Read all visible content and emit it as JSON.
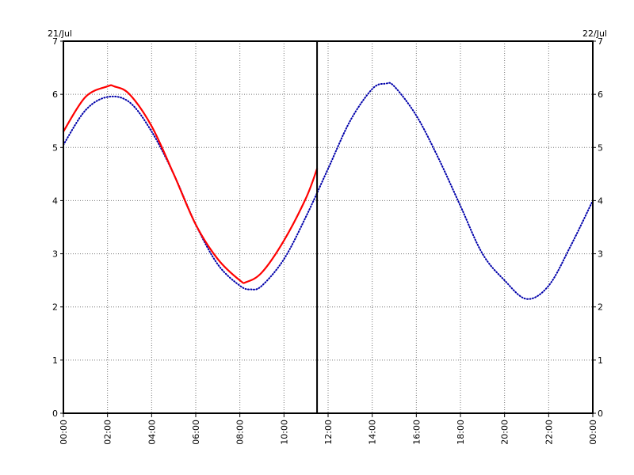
{
  "chart_data": {
    "type": "line",
    "title": "",
    "xlabel": "",
    "ylabel": "",
    "date_start_label": "21/Jul",
    "date_end_label": "22/Jul",
    "x_ticks": [
      "00:00",
      "02:00",
      "04:00",
      "06:00",
      "08:00",
      "10:00",
      "12:00",
      "14:00",
      "16:00",
      "18:00",
      "20:00",
      "22:00",
      "00:00"
    ],
    "xlim_hours": [
      0,
      24
    ],
    "ylim": [
      0,
      7
    ],
    "y_ticks": [
      0,
      1,
      2,
      3,
      4,
      5,
      6,
      7
    ],
    "grid": true,
    "current_time_marker_hours": 11.5,
    "series": [
      {
        "color": "#0000aa",
        "style": "dotted",
        "x_hours": [
          0,
          1,
          2,
          3,
          4,
          5,
          6,
          7,
          8,
          8.5,
          9,
          10,
          11,
          12,
          13,
          14,
          14.6,
          15,
          16,
          17,
          18,
          19,
          20,
          21,
          22,
          23,
          24
        ],
        "y": [
          5.05,
          5.7,
          5.95,
          5.85,
          5.3,
          4.5,
          3.55,
          2.8,
          2.4,
          2.33,
          2.4,
          2.9,
          3.7,
          4.6,
          5.5,
          6.1,
          6.2,
          6.15,
          5.6,
          4.8,
          3.9,
          3.0,
          2.5,
          2.15,
          2.4,
          3.15,
          4.0
        ]
      },
      {
        "color": "#ff0000",
        "style": "solid",
        "x_hours": [
          0,
          1,
          2,
          2.3,
          3,
          4,
          5,
          6,
          7,
          8,
          8.3,
          9,
          10,
          11,
          11.5
        ],
        "y": [
          5.3,
          5.95,
          6.15,
          6.15,
          6.0,
          5.4,
          4.5,
          3.55,
          2.9,
          2.5,
          2.47,
          2.65,
          3.25,
          4.05,
          4.6
        ]
      }
    ]
  }
}
